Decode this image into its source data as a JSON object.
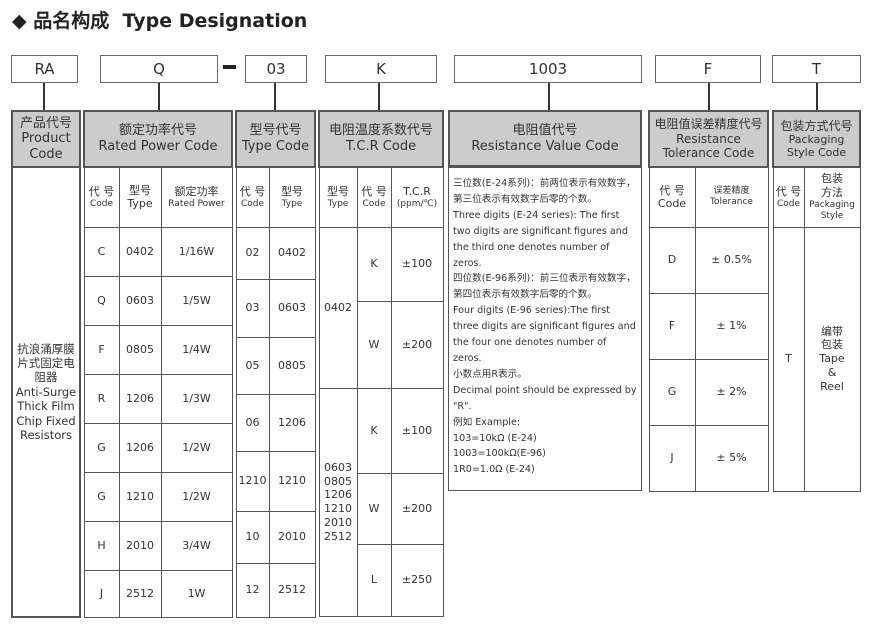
{
  "title": {
    "icon": "diamond-icon",
    "cn": "品名构成",
    "en": "Type Designation"
  },
  "code_boxes": [
    "RA",
    "Q",
    "03",
    "K",
    "1003",
    "F",
    "T"
  ],
  "dash": "-",
  "product": {
    "header_cn": "产品代号",
    "header_en": "Product Code",
    "body_cn": "抗浪涌厚膜片式固定电阻器",
    "body_en": "Anti-Surge Thick Film Chip Fixed Resistors"
  },
  "rated_power": {
    "header_cn": "额定功率代号",
    "header_en": "Rated Power Code",
    "cols": [
      {
        "cn": "代 号",
        "en": "Code"
      },
      {
        "cn": "型号",
        "en": "Type"
      },
      {
        "cn": "额定功率",
        "en": "Rated Power"
      }
    ],
    "rows": [
      [
        "C",
        "0402",
        "1/16W"
      ],
      [
        "Q",
        "0603",
        "1/5W"
      ],
      [
        "F",
        "0805",
        "1/4W"
      ],
      [
        "R",
        "1206",
        "1/3W"
      ],
      [
        "G",
        "1206",
        "1/2W"
      ],
      [
        "G",
        "1210",
        "1/2W"
      ],
      [
        "H",
        "2010",
        "3/4W"
      ],
      [
        "J",
        "2512",
        "1W"
      ]
    ]
  },
  "type_code": {
    "header_cn": "型号代号",
    "header_en": "Type Code",
    "cols": [
      {
        "cn": "代 号",
        "en": "Code"
      },
      {
        "cn": "型号",
        "en": "Type"
      }
    ],
    "rows": [
      [
        "02",
        "0402"
      ],
      [
        "03",
        "0603"
      ],
      [
        "05",
        "0805"
      ],
      [
        "06",
        "1206"
      ],
      [
        "1210",
        "1210"
      ],
      [
        "10",
        "2010"
      ],
      [
        "12",
        "2512"
      ]
    ]
  },
  "tcr": {
    "header_cn": "电阻温度系数代号",
    "header_en": "T.C.R Code",
    "cols": [
      {
        "cn": "型号",
        "en": "Type"
      },
      {
        "cn": "代 号",
        "en": "Code"
      },
      {
        "cn": "T.C.R",
        "en": "(ppm/℃)"
      }
    ],
    "groups": [
      {
        "type": "0402",
        "rows": [
          [
            "K",
            "±100"
          ],
          [
            "W",
            "±200"
          ]
        ]
      },
      {
        "type": "0603 0805 1206 1210 2010 2512",
        "rows": [
          [
            "K",
            "±100"
          ],
          [
            "W",
            "±200"
          ],
          [
            "L",
            "±250"
          ]
        ]
      }
    ]
  },
  "resistance": {
    "header_cn": "电阻值代号",
    "header_en": "Resistance Value Code",
    "lines": [
      "三位数(E-24系列)：前两位表示有效数字，第三位表示有效数字后零的个数。",
      "Three digits (E-24 series): The first two digits are significant figures and the third one denotes number of zeros.",
      "四位数(E-96系列)：前三位表示有效数字，第四位表示有效数字后零的个数。",
      "Four digits (E-96 series):The first three digits are significant figures and the four one denotes number of zeros.",
      "小数点用R表示。",
      "Decimal point should be expressed by \"R\".",
      "例如 Example:",
      "103=10kΩ  (E-24)",
      "1003=100kΩ(E-96)",
      "1R0=1.0Ω  (E-24)"
    ]
  },
  "tolerance": {
    "header_cn": "电阻值误差精度代号",
    "header_en": "Resistance Tolerance Code",
    "cols": [
      {
        "cn": "代 号",
        "en": "Code"
      },
      {
        "cn": "误差精度",
        "en": "Tolerance"
      }
    ],
    "rows": [
      [
        "D",
        "± 0.5%"
      ],
      [
        "F",
        "± 1%"
      ],
      [
        "G",
        "± 2%"
      ],
      [
        "J",
        "± 5%"
      ]
    ]
  },
  "packaging": {
    "header_cn": "包装方式代号",
    "header_en": "Packaging Style Code",
    "cols": [
      {
        "cn": "代 号",
        "en": "Code"
      },
      {
        "cn": "包装方法",
        "en": "Packaging Style"
      }
    ],
    "rows": [
      [
        "T",
        "编带包装 Tape & Reel"
      ]
    ]
  }
}
